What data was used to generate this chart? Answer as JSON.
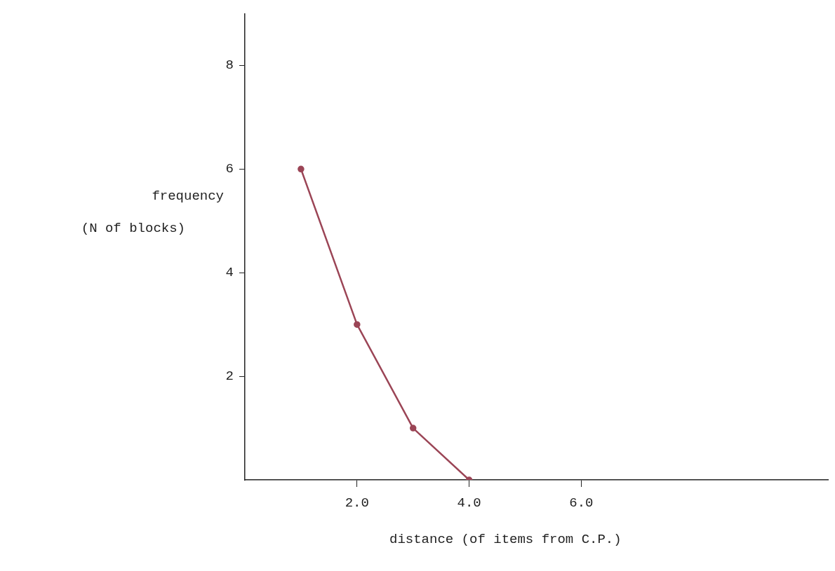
{
  "chart_data": {
    "type": "line",
    "xlabel": "distance (of items from C.P.)",
    "ylabel": "frequency\n(N of blocks)",
    "x": [
      1,
      2,
      3,
      4
    ],
    "series": [
      {
        "color": "#9b4556",
        "values": [
          6,
          3,
          1,
          0
        ]
      }
    ],
    "xlim": [
      0,
      10.4
    ],
    "xticks": [
      {
        "value": 2,
        "label": "2.0"
      },
      {
        "value": 4,
        "label": "4.0"
      },
      {
        "value": 6,
        "label": "6.0"
      }
    ],
    "ylim": [
      0,
      9
    ],
    "yticks": [
      2,
      4,
      6,
      8
    ],
    "grid": false,
    "legend": false,
    "marker": "circle",
    "line_style": "solid"
  }
}
